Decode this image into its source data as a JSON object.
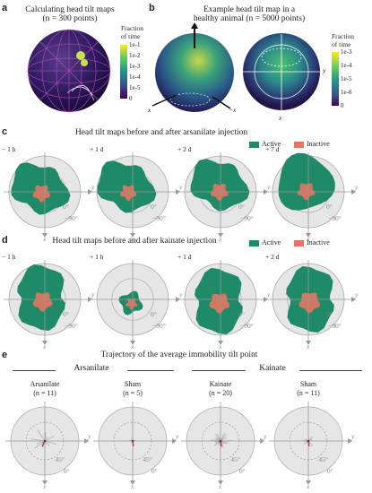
{
  "panels": {
    "a": {
      "letter": "a",
      "title": "Calculating head tilt maps",
      "subtitle": "(n = 300 points)"
    },
    "b": {
      "letter": "b",
      "title": "Example head tilt map in a",
      "subtitle": "healthy animal (n = 5000 points)"
    },
    "c": {
      "letter": "c",
      "title": "Head tilt maps before and after arsanilate injection",
      "times": [
        "− 1 h",
        "+ 1 d",
        "+ 2 d",
        "+ 7 d"
      ]
    },
    "d": {
      "letter": "d",
      "title": "Head tilt maps before and after kainate injection",
      "times": [
        "− 1 h",
        "+ 1 h",
        "+ 1 d",
        "+ 2 d"
      ]
    },
    "e": {
      "letter": "e",
      "title": "Trajectory of the average immobility tilt point",
      "group_left": "Arsanilate",
      "group_right": "Kainate",
      "conditions": [
        {
          "name": "Arsanilate",
          "n": "(n = 11)"
        },
        {
          "name": "Sham",
          "n": "(n = 5)"
        },
        {
          "name": "Kainate",
          "n": "(n = 20)"
        },
        {
          "name": "Sham",
          "n": "(n = 11)"
        }
      ]
    }
  },
  "legend": {
    "active": "Active",
    "inactive": "Inactive"
  },
  "colorbar_a": {
    "title_line1": "Fraction",
    "title_line2": "of time",
    "ticks": [
      "1e-1",
      "1e-2",
      "1e-3",
      "1e-4",
      "1e-5",
      "0"
    ]
  },
  "colorbar_b": {
    "title_line1": "Fraction",
    "title_line2": "of time",
    "ticks": [
      "1e-3",
      "1e-4",
      "1e-5",
      "1e-6",
      "0"
    ]
  },
  "axes": {
    "x": "x",
    "y": "y",
    "z": "z",
    "neg_x": "−x",
    "deg90": "90°",
    "deg0": "0°",
    "deg45": "45°"
  },
  "colors": {
    "active": "#1e8a68",
    "inactive": "#e8735f",
    "disk": "#e6e6e6",
    "ring": "#aaaaaa",
    "trajectory": "#a8a8a8",
    "trajectory_end": "#d33"
  }
}
